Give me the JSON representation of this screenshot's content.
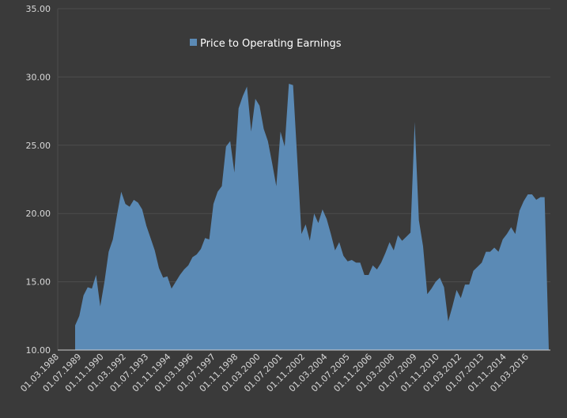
{
  "chart_data": {
    "type": "area",
    "title": "",
    "xlabel": "",
    "ylabel": "",
    "ylim": [
      10,
      35
    ],
    "y_ticks": [
      "10.00",
      "15.00",
      "20.00",
      "25.00",
      "30.00",
      "35.00"
    ],
    "x_ticks": [
      "01.03.1988",
      "01.07.1989",
      "01.11.1990",
      "01.03.1992",
      "01.07.1993",
      "01.11.1994",
      "01.03.1996",
      "01.07.1997",
      "01.11.1998",
      "01.03.2000",
      "01.07.2001",
      "01.11.2002",
      "01.03.2004",
      "01.07.2005",
      "01.11.2006",
      "01.03.2008",
      "01.07.2009",
      "01.11.2010",
      "01.03.2012",
      "01.07.2013",
      "01.11.2014",
      "01.03.2016"
    ],
    "grid": true,
    "legend_position": "top",
    "colors": {
      "background": "#3a3a3a",
      "grid": "#4c4c4c",
      "axis": "#cfcfcf",
      "tick_text": "#d8d8d8",
      "series_fill": "#5b8ab5",
      "legend_text": "#ffffff"
    },
    "series": [
      {
        "name": "Price to Operating Earnings",
        "x": [
          "1988-12-31",
          "1989-03-31",
          "1989-06-30",
          "1989-09-30",
          "1989-12-31",
          "1990-03-31",
          "1990-06-30",
          "1990-09-30",
          "1990-12-31",
          "1991-03-31",
          "1991-06-30",
          "1991-09-30",
          "1991-12-31",
          "1992-03-31",
          "1992-06-30",
          "1992-09-30",
          "1992-12-31",
          "1993-03-31",
          "1993-06-30",
          "1993-09-30",
          "1993-12-31",
          "1994-03-31",
          "1994-06-30",
          "1994-09-30",
          "1994-12-31",
          "1995-03-31",
          "1995-06-30",
          "1995-09-30",
          "1995-12-31",
          "1996-03-31",
          "1996-06-30",
          "1996-09-30",
          "1996-12-31",
          "1997-03-31",
          "1997-06-30",
          "1997-09-30",
          "1997-12-31",
          "1998-03-31",
          "1998-06-30",
          "1998-09-30",
          "1998-12-31",
          "1999-03-31",
          "1999-06-30",
          "1999-09-30",
          "1999-12-31",
          "2000-03-31",
          "2000-06-30",
          "2000-09-30",
          "2000-12-31",
          "2001-03-31",
          "2001-06-30",
          "2001-09-30",
          "2001-12-31",
          "2002-03-31",
          "2002-06-30",
          "2002-09-30",
          "2002-12-31",
          "2003-03-31",
          "2003-06-30",
          "2003-09-30",
          "2003-12-31",
          "2004-03-31",
          "2004-06-30",
          "2004-09-30",
          "2004-12-31",
          "2005-03-31",
          "2005-06-30",
          "2005-09-30",
          "2005-12-31",
          "2006-03-31",
          "2006-06-30",
          "2006-09-30",
          "2006-12-31",
          "2007-03-31",
          "2007-06-30",
          "2007-09-30",
          "2007-12-31",
          "2008-03-31",
          "2008-06-30",
          "2008-09-30",
          "2008-12-31",
          "2009-03-31",
          "2009-06-30",
          "2009-09-30",
          "2009-12-31",
          "2010-03-31",
          "2010-06-30",
          "2010-09-30",
          "2010-12-31",
          "2011-03-31",
          "2011-06-30",
          "2011-09-30",
          "2011-12-31",
          "2012-03-31",
          "2012-06-30",
          "2012-09-30",
          "2012-12-31",
          "2013-03-31",
          "2013-06-30",
          "2013-09-30",
          "2013-12-31",
          "2014-03-31",
          "2014-06-30",
          "2014-09-30",
          "2014-12-31",
          "2015-03-31",
          "2015-06-30",
          "2015-09-30",
          "2015-12-31",
          "2016-03-31",
          "2016-06-30",
          "2016-09-30",
          "2016-12-31",
          "2017-03-31"
        ],
        "values": [
          11.8,
          12.5,
          14.0,
          14.6,
          14.5,
          15.5,
          13.2,
          15.0,
          17.2,
          18.1,
          19.9,
          21.6,
          20.7,
          20.5,
          21.0,
          20.8,
          20.3,
          19.1,
          18.2,
          17.3,
          16.0,
          15.3,
          15.4,
          14.5,
          15.0,
          15.5,
          15.9,
          16.2,
          16.8,
          17.0,
          17.4,
          18.2,
          18.1,
          20.7,
          21.6,
          22.0,
          24.9,
          25.3,
          23.0,
          27.7,
          28.6,
          29.3,
          26.0,
          28.4,
          27.9,
          26.2,
          25.3,
          23.7,
          22.0,
          26.0,
          24.9,
          29.5,
          29.4,
          24.0,
          18.5,
          19.2,
          18.0,
          20.0,
          19.3,
          20.3,
          19.6,
          18.5,
          17.3,
          17.9,
          16.9,
          16.5,
          16.6,
          16.4,
          16.4,
          15.5,
          15.5,
          16.2,
          15.9,
          16.4,
          17.1,
          17.9,
          17.3,
          18.4,
          18.0,
          18.3,
          18.6,
          26.7,
          19.5,
          17.6,
          14.1,
          14.5,
          15.0,
          15.3,
          14.6,
          12.1,
          13.2,
          14.4,
          13.8,
          14.8,
          14.8,
          15.8,
          16.1,
          16.4,
          17.2,
          17.2,
          17.5,
          17.2,
          18.1,
          18.5,
          19.0,
          18.5,
          20.2,
          20.9,
          21.4,
          21.4,
          21.0,
          21.2,
          21.2,
          10.0
        ]
      }
    ]
  }
}
